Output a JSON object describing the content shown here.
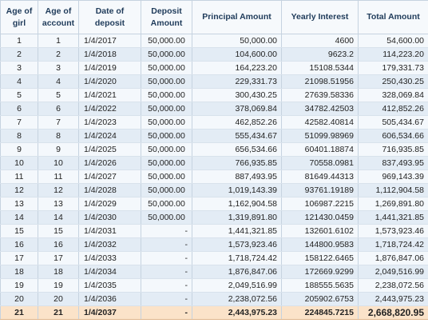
{
  "table": {
    "headers": {
      "age_of_girl": "Age of girl",
      "age_of_account": "Age of account",
      "date_of_deposit": "Date of deposit",
      "deposit_amount": "Deposit Amount",
      "principal_amount": "Principal Amount",
      "yearly_interest": "Yearly Interest",
      "total_amount": "Total Amount"
    },
    "rows": [
      {
        "age_girl": "1",
        "age_account": "1",
        "date": "1/4/2017",
        "deposit": "50,000.00",
        "principal": "50,000.00",
        "interest": "4600",
        "total": "54,600.00"
      },
      {
        "age_girl": "2",
        "age_account": "2",
        "date": "1/4/2018",
        "deposit": "50,000.00",
        "principal": "104,600.00",
        "interest": "9623.2",
        "total": "114,223.20"
      },
      {
        "age_girl": "3",
        "age_account": "3",
        "date": "1/4/2019",
        "deposit": "50,000.00",
        "principal": "164,223.20",
        "interest": "15108.5344",
        "total": "179,331.73"
      },
      {
        "age_girl": "4",
        "age_account": "4",
        "date": "1/4/2020",
        "deposit": "50,000.00",
        "principal": "229,331.73",
        "interest": "21098.51956",
        "total": "250,430.25"
      },
      {
        "age_girl": "5",
        "age_account": "5",
        "date": "1/4/2021",
        "deposit": "50,000.00",
        "principal": "300,430.25",
        "interest": "27639.58336",
        "total": "328,069.84"
      },
      {
        "age_girl": "6",
        "age_account": "6",
        "date": "1/4/2022",
        "deposit": "50,000.00",
        "principal": "378,069.84",
        "interest": "34782.42503",
        "total": "412,852.26"
      },
      {
        "age_girl": "7",
        "age_account": "7",
        "date": "1/4/2023",
        "deposit": "50,000.00",
        "principal": "462,852.26",
        "interest": "42582.40814",
        "total": "505,434.67"
      },
      {
        "age_girl": "8",
        "age_account": "8",
        "date": "1/4/2024",
        "deposit": "50,000.00",
        "principal": "555,434.67",
        "interest": "51099.98969",
        "total": "606,534.66"
      },
      {
        "age_girl": "9",
        "age_account": "9",
        "date": "1/4/2025",
        "deposit": "50,000.00",
        "principal": "656,534.66",
        "interest": "60401.18874",
        "total": "716,935.85"
      },
      {
        "age_girl": "10",
        "age_account": "10",
        "date": "1/4/2026",
        "deposit": "50,000.00",
        "principal": "766,935.85",
        "interest": "70558.0981",
        "total": "837,493.95"
      },
      {
        "age_girl": "11",
        "age_account": "11",
        "date": "1/4/2027",
        "deposit": "50,000.00",
        "principal": "887,493.95",
        "interest": "81649.44313",
        "total": "969,143.39"
      },
      {
        "age_girl": "12",
        "age_account": "12",
        "date": "1/4/2028",
        "deposit": "50,000.00",
        "principal": "1,019,143.39",
        "interest": "93761.19189",
        "total": "1,112,904.58"
      },
      {
        "age_girl": "13",
        "age_account": "13",
        "date": "1/4/2029",
        "deposit": "50,000.00",
        "principal": "1,162,904.58",
        "interest": "106987.2215",
        "total": "1,269,891.80"
      },
      {
        "age_girl": "14",
        "age_account": "14",
        "date": "1/4/2030",
        "deposit": "50,000.00",
        "principal": "1,319,891.80",
        "interest": "121430.0459",
        "total": "1,441,321.85"
      },
      {
        "age_girl": "15",
        "age_account": "15",
        "date": "1/4/2031",
        "deposit": "-",
        "principal": "1,441,321.85",
        "interest": "132601.6102",
        "total": "1,573,923.46"
      },
      {
        "age_girl": "16",
        "age_account": "16",
        "date": "1/4/2032",
        "deposit": "-",
        "principal": "1,573,923.46",
        "interest": "144800.9583",
        "total": "1,718,724.42"
      },
      {
        "age_girl": "17",
        "age_account": "17",
        "date": "1/4/2033",
        "deposit": "-",
        "principal": "1,718,724.42",
        "interest": "158122.6465",
        "total": "1,876,847.06"
      },
      {
        "age_girl": "18",
        "age_account": "18",
        "date": "1/4/2034",
        "deposit": "-",
        "principal": "1,876,847.06",
        "interest": "172669.9299",
        "total": "2,049,516.99"
      },
      {
        "age_girl": "19",
        "age_account": "19",
        "date": "1/4/2035",
        "deposit": "-",
        "principal": "2,049,516.99",
        "interest": "188555.5635",
        "total": "2,238,072.56"
      },
      {
        "age_girl": "20",
        "age_account": "20",
        "date": "1/4/2036",
        "deposit": "-",
        "principal": "2,238,072.56",
        "interest": "205902.6753",
        "total": "2,443,975.23"
      },
      {
        "age_girl": "21",
        "age_account": "21",
        "date": "1/4/2037",
        "deposit": "-",
        "principal": "2,443,975.23",
        "interest": "224845.7215",
        "total": "2,668,820.95"
      }
    ],
    "colors": {
      "header_text": "#1f3b5a",
      "band_row": "#e3ecf5",
      "final_row": "#fbe3c9"
    }
  }
}
